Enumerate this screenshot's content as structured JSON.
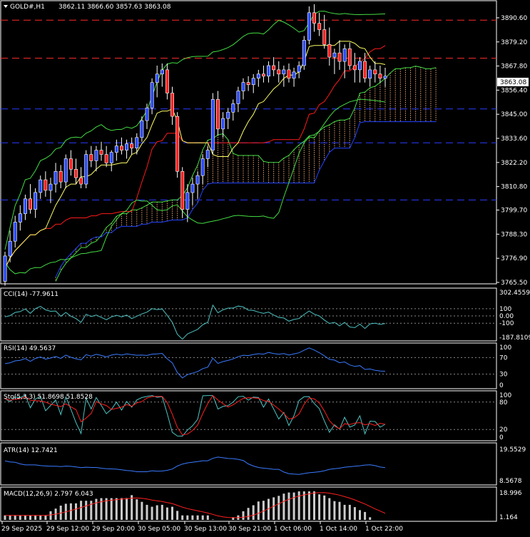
{
  "header": {
    "symbol": "GOLD#,H1",
    "ohlc": "3862.11 3866.60 3857.63 3863.08"
  },
  "price_axis": {
    "ticks": [
      "3890.60",
      "3879.20",
      "3867.80",
      "3856.40",
      "3845.00",
      "3833.60",
      "3822.20",
      "3810.80",
      "3799.70",
      "3788.30",
      "3776.90",
      "3765.50"
    ],
    "current": "3863.08",
    "range": [
      3765.5,
      3898
    ]
  },
  "time_axis": {
    "labels": [
      "29 Sep 2025",
      "29 Sep 12:00",
      "29 Sep 20:00",
      "30 Sep 05:00",
      "30 Sep 13:00",
      "30 Sep 21:00",
      "1 Oct 06:00",
      "1 Oct 14:00",
      "1 Oct 22:00"
    ]
  },
  "indicators": {
    "cci": {
      "label": "CCI(14) -77.9611",
      "ticks": [
        "302.4559",
        "100",
        "0.00",
        "-100",
        "-187.8109"
      ]
    },
    "rsi": {
      "label": "RSI(14) 49.5637",
      "ticks": [
        "100",
        "70",
        "30",
        "0"
      ]
    },
    "stoch": {
      "label": "Sto(5,3,3) 51.8698 51.8528",
      "ticks": [
        "100",
        "80",
        "20",
        "0"
      ]
    },
    "atr": {
      "label": "ATR(14) 12.7421",
      "ticks": [
        "19.5529",
        "8.5678"
      ]
    },
    "macd": {
      "label": "MACD(12,26,9) 2.797 6.043",
      "ticks": [
        "18.996",
        "1.164"
      ]
    }
  },
  "colors": {
    "bull": "#2b4bff",
    "bear": "#ff2020",
    "bg": "#000000",
    "axis": "#ffffff",
    "tenkan": "#ffff66",
    "kijun": "#ff1a1a",
    "senkouA": "#44dd44",
    "senkouB": "#2244ff",
    "cloud": "#e8a070",
    "level": "#ff2b2b",
    "blueLevel": "#2a3cff"
  },
  "chart_data": {
    "type": "candlestick",
    "title": "GOLD#,H1",
    "ohlc": [
      [
        3766,
        3780,
        3764,
        3778
      ],
      [
        3778,
        3790,
        3775,
        3785
      ],
      [
        3785,
        3797,
        3782,
        3794
      ],
      [
        3794,
        3802,
        3790,
        3798
      ],
      [
        3798,
        3807,
        3795,
        3805
      ],
      [
        3805,
        3812,
        3798,
        3800
      ],
      [
        3800,
        3810,
        3796,
        3808
      ],
      [
        3808,
        3816,
        3805,
        3814
      ],
      [
        3814,
        3818,
        3806,
        3809
      ],
      [
        3809,
        3815,
        3803,
        3812
      ],
      [
        3812,
        3822,
        3808,
        3818
      ],
      [
        3818,
        3821,
        3810,
        3813
      ],
      [
        3813,
        3826,
        3810,
        3824
      ],
      [
        3824,
        3828,
        3816,
        3819
      ],
      [
        3819,
        3824,
        3812,
        3815
      ],
      [
        3815,
        3820,
        3810,
        3812
      ],
      [
        3812,
        3828,
        3810,
        3826
      ],
      [
        3826,
        3830,
        3820,
        3823
      ],
      [
        3823,
        3830,
        3818,
        3828
      ],
      [
        3828,
        3832,
        3823,
        3826
      ],
      [
        3826,
        3830,
        3820,
        3822
      ],
      [
        3822,
        3828,
        3818,
        3827
      ],
      [
        3827,
        3833,
        3823,
        3830
      ],
      [
        3830,
        3834,
        3826,
        3828
      ],
      [
        3828,
        3833,
        3824,
        3831
      ],
      [
        3831,
        3834,
        3826,
        3829
      ],
      [
        3829,
        3836,
        3826,
        3834
      ],
      [
        3834,
        3844,
        3832,
        3842
      ],
      [
        3842,
        3850,
        3838,
        3848
      ],
      [
        3848,
        3862,
        3845,
        3860
      ],
      [
        3860,
        3868,
        3853,
        3864
      ],
      [
        3864,
        3869,
        3858,
        3866
      ],
      [
        3866,
        3869,
        3852,
        3855
      ],
      [
        3855,
        3858,
        3840,
        3844
      ],
      [
        3844,
        3846,
        3815,
        3818
      ],
      [
        3818,
        3820,
        3796,
        3800
      ],
      [
        3800,
        3812,
        3794,
        3808
      ],
      [
        3808,
        3815,
        3802,
        3812
      ],
      [
        3812,
        3818,
        3805,
        3816
      ],
      [
        3816,
        3826,
        3812,
        3824
      ],
      [
        3824,
        3830,
        3820,
        3828
      ],
      [
        3828,
        3855,
        3826,
        3852
      ],
      [
        3852,
        3856,
        3835,
        3838
      ],
      [
        3838,
        3846,
        3834,
        3843
      ],
      [
        3843,
        3848,
        3838,
        3846
      ],
      [
        3846,
        3852,
        3842,
        3850
      ],
      [
        3850,
        3858,
        3846,
        3856
      ],
      [
        3856,
        3862,
        3852,
        3860
      ],
      [
        3860,
        3863,
        3856,
        3859
      ],
      [
        3859,
        3864,
        3855,
        3862
      ],
      [
        3862,
        3866,
        3858,
        3864
      ],
      [
        3864,
        3868,
        3860,
        3863
      ],
      [
        3863,
        3870,
        3860,
        3868
      ],
      [
        3868,
        3872,
        3863,
        3866
      ],
      [
        3866,
        3870,
        3860,
        3864
      ],
      [
        3864,
        3868,
        3858,
        3866
      ],
      [
        3866,
        3869,
        3860,
        3862
      ],
      [
        3862,
        3867,
        3858,
        3865
      ],
      [
        3865,
        3870,
        3862,
        3868
      ],
      [
        3868,
        3882,
        3866,
        3880
      ],
      [
        3880,
        3896,
        3878,
        3893
      ],
      [
        3893,
        3897,
        3884,
        3888
      ],
      [
        3888,
        3893,
        3882,
        3885
      ],
      [
        3885,
        3892,
        3876,
        3878
      ],
      [
        3878,
        3886,
        3868,
        3872
      ],
      [
        3872,
        3876,
        3864,
        3874
      ],
      [
        3874,
        3880,
        3866,
        3870
      ],
      [
        3870,
        3878,
        3862,
        3876
      ],
      [
        3876,
        3879,
        3866,
        3868
      ],
      [
        3868,
        3874,
        3860,
        3866
      ],
      [
        3866,
        3872,
        3860,
        3870
      ],
      [
        3870,
        3874,
        3860,
        3862
      ],
      [
        3862,
        3868,
        3858,
        3866
      ],
      [
        3866,
        3870,
        3860,
        3864
      ],
      [
        3864,
        3868,
        3860,
        3862
      ],
      [
        3862,
        3867,
        3858,
        3863
      ]
    ],
    "horizontal_levels": {
      "red_dashed": [
        3889.5,
        3871.5
      ],
      "blue_dashed": [
        3847.5,
        3831.5,
        3804.5
      ]
    },
    "ylim": [
      3765.5,
      3898
    ]
  }
}
